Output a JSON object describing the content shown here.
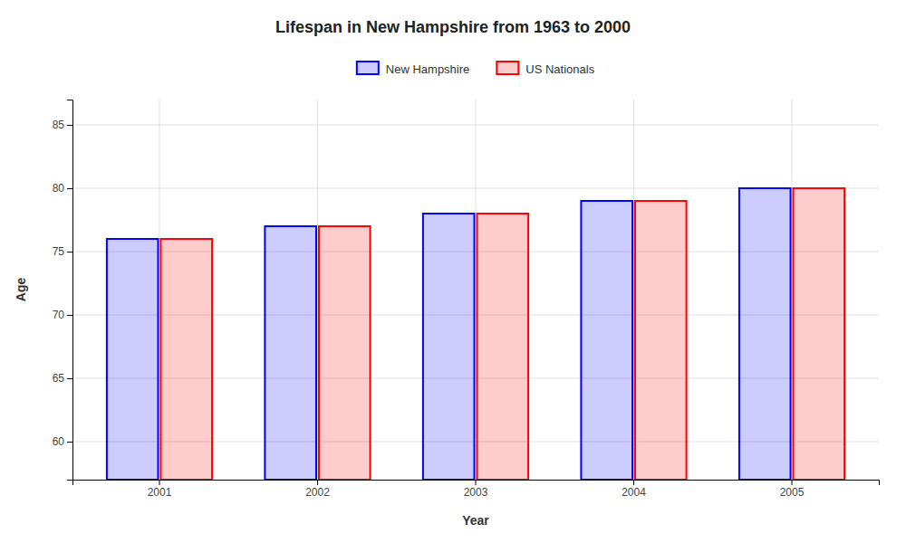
{
  "chart_data": {
    "type": "bar",
    "title": "Lifespan in New Hampshire from 1963 to 2000",
    "x_label": "Year",
    "y_label": "Age",
    "categories": [
      "2001",
      "2002",
      "2003",
      "2004",
      "2005"
    ],
    "series": [
      {
        "name": "New Hampshire",
        "color": "#0000ff",
        "values": [
          76,
          77,
          78,
          79,
          80
        ]
      },
      {
        "name": "US Nationals",
        "color": "#ff0000",
        "values": [
          76,
          77,
          78,
          79,
          80
        ]
      }
    ],
    "ylim": [
      57,
      87
    ],
    "yticks": [
      60,
      65,
      70,
      75,
      80,
      85
    ],
    "grid": true,
    "legend": "top"
  }
}
